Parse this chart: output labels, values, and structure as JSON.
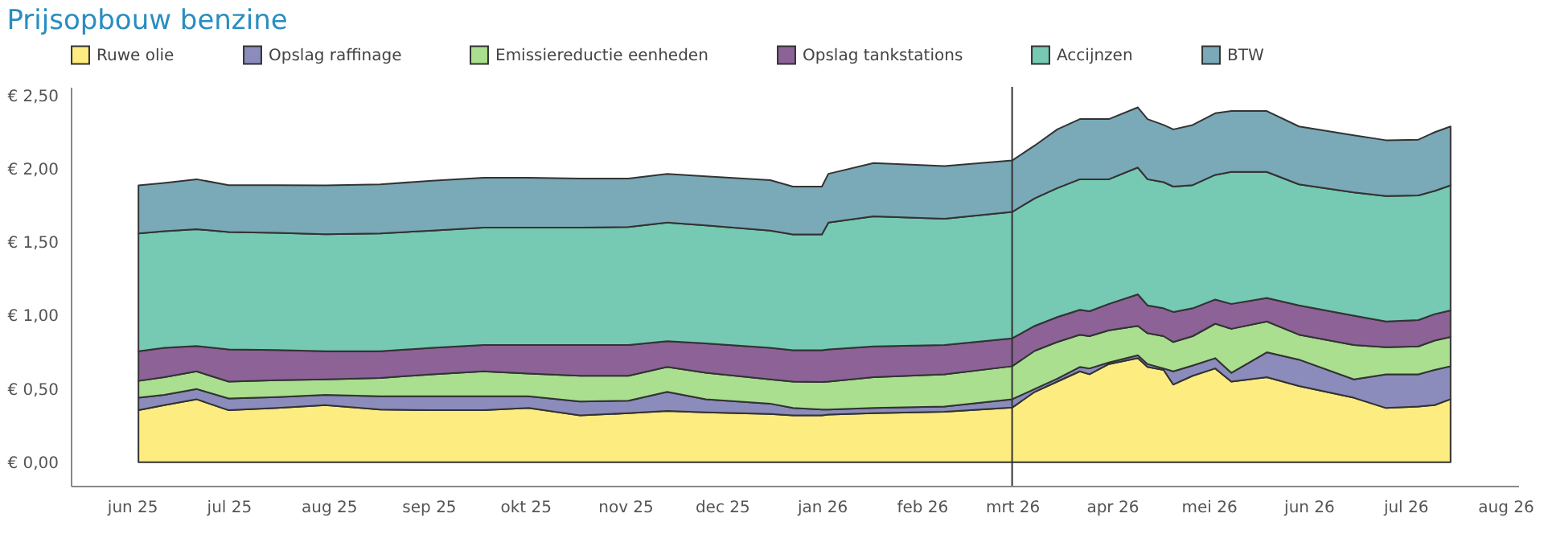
{
  "chart_data": {
    "type": "area",
    "title": "Prijsopbouw benzine",
    "stacked": true,
    "legend": "top",
    "grid": false,
    "x": [
      "2025-06-03",
      "2025-06-11",
      "2025-06-21",
      "2025-07-01",
      "2025-07-16",
      "2025-07-31",
      "2025-08-17",
      "2025-09-02",
      "2025-09-18",
      "2025-10-02",
      "2025-10-18",
      "2025-11-02",
      "2025-11-14",
      "2025-11-26",
      "2025-12-16",
      "2025-12-23",
      "2026-01-01",
      "2026-01-03",
      "2026-01-17",
      "2026-02-08",
      "2026-03-01",
      "2026-03-08",
      "2026-03-15",
      "2026-03-22",
      "2026-03-25",
      "2026-03-31",
      "2026-04-09",
      "2026-04-12",
      "2026-04-17",
      "2026-04-20",
      "2026-04-26",
      "2026-05-03",
      "2026-05-08",
      "2026-05-19",
      "2026-05-29",
      "2026-06-15",
      "2026-06-25",
      "2026-07-05",
      "2026-07-10",
      "2026-07-15"
    ],
    "series": [
      {
        "name": "Ruwe olie",
        "color": "#fdec80",
        "values": [
          0.355,
          0.39,
          0.43,
          0.355,
          0.37,
          0.39,
          0.36,
          0.355,
          0.355,
          0.37,
          0.32,
          0.335,
          0.35,
          0.34,
          0.33,
          0.32,
          0.32,
          0.325,
          0.335,
          0.345,
          0.373,
          0.48,
          0.55,
          0.62,
          0.6,
          0.67,
          0.71,
          0.65,
          0.63,
          0.53,
          0.59,
          0.64,
          0.55,
          0.58,
          0.52,
          0.44,
          0.37,
          0.38,
          0.39,
          0.43
        ]
      },
      {
        "name": "Opslag raffinage",
        "color": "#8b8cbb",
        "values": [
          0.085,
          0.07,
          0.07,
          0.08,
          0.075,
          0.07,
          0.09,
          0.095,
          0.095,
          0.08,
          0.095,
          0.085,
          0.13,
          0.09,
          0.07,
          0.05,
          0.04,
          0.035,
          0.035,
          0.035,
          0.057,
          0.02,
          0.02,
          0.03,
          0.04,
          0.01,
          0.02,
          0.02,
          0.01,
          0.09,
          0.07,
          0.07,
          0.06,
          0.17,
          0.18,
          0.125,
          0.23,
          0.22,
          0.24,
          0.225
        ]
      },
      {
        "name": "Emissiereductie eenheden",
        "color": "#a9df8f",
        "values": [
          0.115,
          0.12,
          0.12,
          0.115,
          0.115,
          0.105,
          0.125,
          0.15,
          0.17,
          0.155,
          0.175,
          0.17,
          0.17,
          0.18,
          0.165,
          0.18,
          0.187,
          0.19,
          0.21,
          0.22,
          0.225,
          0.26,
          0.25,
          0.22,
          0.22,
          0.22,
          0.2,
          0.21,
          0.22,
          0.2,
          0.2,
          0.235,
          0.3,
          0.21,
          0.17,
          0.235,
          0.185,
          0.19,
          0.2,
          0.2
        ]
      },
      {
        "name": "Opslag tankstations",
        "color": "#8c6297",
        "values": [
          0.202,
          0.2,
          0.173,
          0.22,
          0.205,
          0.192,
          0.182,
          0.18,
          0.18,
          0.195,
          0.21,
          0.21,
          0.176,
          0.2,
          0.215,
          0.214,
          0.217,
          0.22,
          0.21,
          0.2,
          0.19,
          0.17,
          0.17,
          0.17,
          0.17,
          0.18,
          0.215,
          0.19,
          0.19,
          0.205,
          0.19,
          0.165,
          0.17,
          0.16,
          0.2,
          0.2,
          0.175,
          0.18,
          0.18,
          0.181
        ]
      },
      {
        "name": "Accijnzen",
        "color": "#76c9b3",
        "values": [
          0.803,
          0.795,
          0.797,
          0.8,
          0.8,
          0.798,
          0.803,
          0.8,
          0.8,
          0.8,
          0.8,
          0.805,
          0.808,
          0.805,
          0.8,
          0.79,
          0.79,
          0.864,
          0.887,
          0.86,
          0.862,
          0.87,
          0.88,
          0.89,
          0.9,
          0.85,
          0.865,
          0.86,
          0.86,
          0.855,
          0.84,
          0.85,
          0.9,
          0.86,
          0.825,
          0.84,
          0.855,
          0.85,
          0.84,
          0.852
        ]
      },
      {
        "name": "BTW",
        "color": "#7aa9b7",
        "values": [
          0.328,
          0.33,
          0.34,
          0.32,
          0.325,
          0.333,
          0.335,
          0.34,
          0.34,
          0.34,
          0.335,
          0.33,
          0.333,
          0.335,
          0.344,
          0.326,
          0.326,
          0.333,
          0.363,
          0.36,
          0.351,
          0.36,
          0.4,
          0.41,
          0.41,
          0.41,
          0.41,
          0.41,
          0.39,
          0.39,
          0.41,
          0.42,
          0.415,
          0.415,
          0.395,
          0.39,
          0.381,
          0.38,
          0.4,
          0.402
        ]
      }
    ],
    "xlim": [
      "2025-05-13",
      "2026-08-05"
    ],
    "xticks": [
      {
        "value": "2025-06-01",
        "label": "jun 25"
      },
      {
        "value": "2025-07-01",
        "label": "jul 25"
      },
      {
        "value": "2025-08-01",
        "label": "aug 25"
      },
      {
        "value": "2025-09-01",
        "label": "sep 25"
      },
      {
        "value": "2025-10-01",
        "label": "okt 25"
      },
      {
        "value": "2025-11-01",
        "label": "nov 25"
      },
      {
        "value": "2025-12-01",
        "label": "dec 25"
      },
      {
        "value": "2026-01-01",
        "label": "jan 26"
      },
      {
        "value": "2026-02-01",
        "label": "feb 26"
      },
      {
        "value": "2026-03-01",
        "label": "mrt 26"
      },
      {
        "value": "2026-04-01",
        "label": "apr 26"
      },
      {
        "value": "2026-05-01",
        "label": "mei 26"
      },
      {
        "value": "2026-06-01",
        "label": "jun 26"
      },
      {
        "value": "2026-07-01",
        "label": "jul 26"
      },
      {
        "value": "2026-08-01",
        "label": "aug 26"
      }
    ],
    "ylim": [
      -0.16,
      2.56
    ],
    "yticks": [
      {
        "value": 0,
        "label": "€ 0,00"
      },
      {
        "value": 0.5,
        "label": "€ 0,50"
      },
      {
        "value": 1,
        "label": "€ 1,00"
      },
      {
        "value": 1.5,
        "label": "€ 1,50"
      },
      {
        "value": 2,
        "label": "€ 2,00"
      },
      {
        "value": 2.5,
        "label": "€ 2,50"
      }
    ],
    "ref_lines": [
      {
        "axis": "x",
        "value": "2026-03-01",
        "color": "#333333"
      }
    ]
  }
}
